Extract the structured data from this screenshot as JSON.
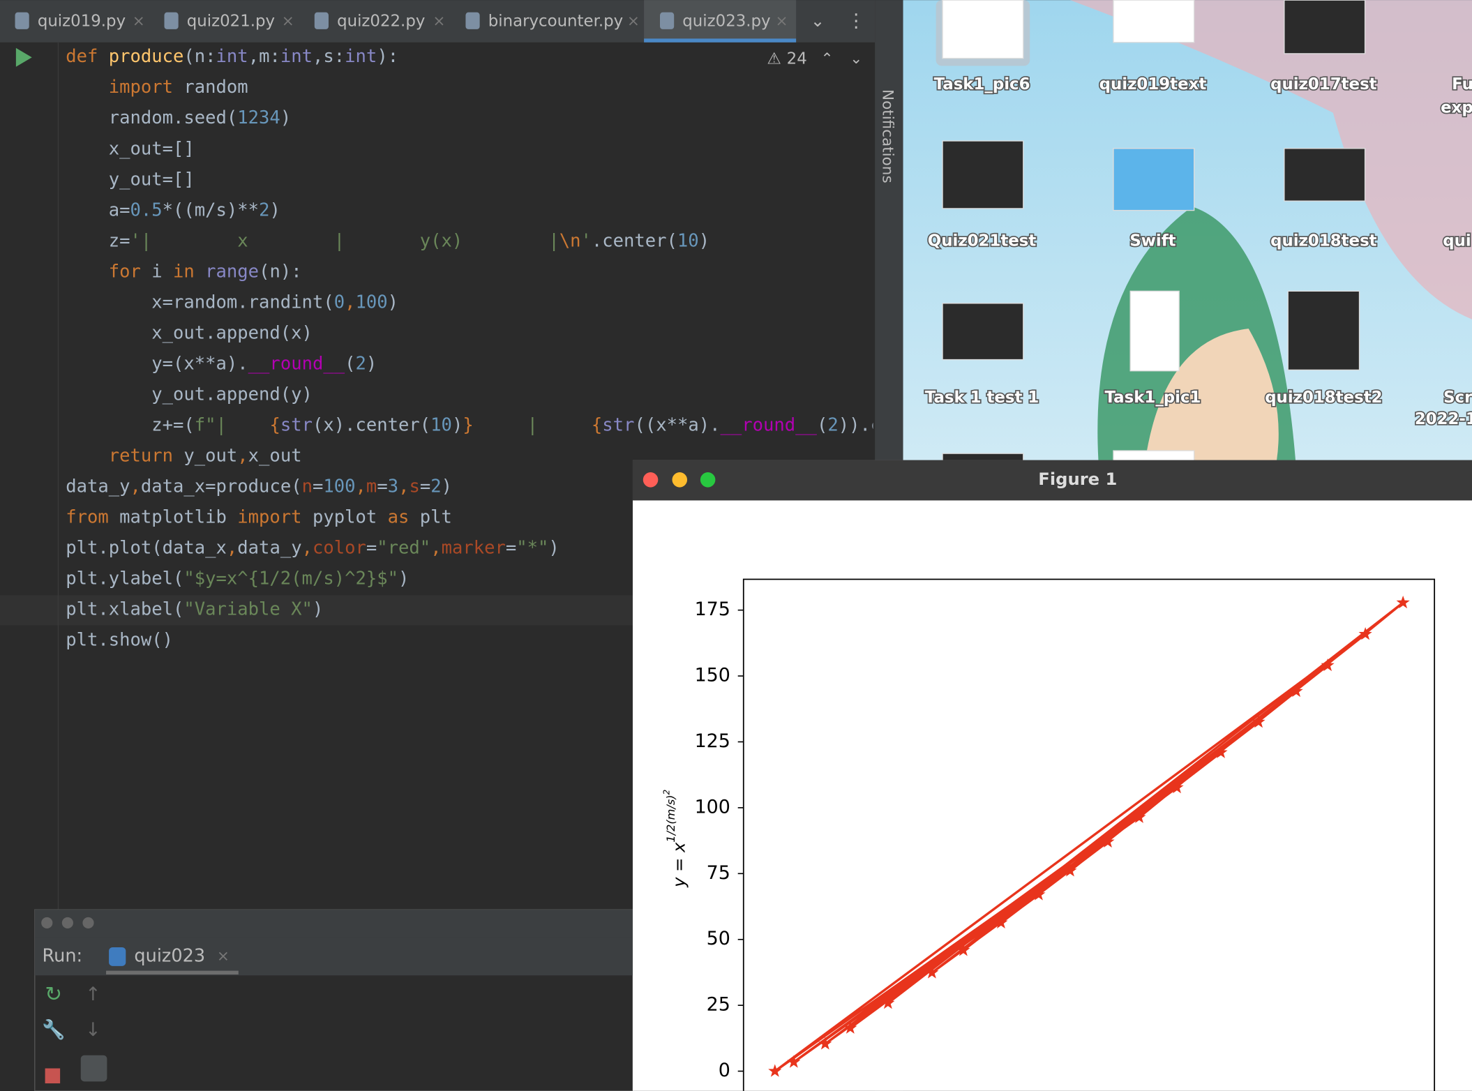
{
  "editor": {
    "tabs": [
      "quiz019.py",
      "quiz021.py",
      "quiz022.py",
      "binarycounter.py",
      "quiz023.py"
    ],
    "warnings": "24",
    "notifications": "Notifications",
    "lines": [
      [
        [
          "def ",
          "#cc7832"
        ],
        [
          "produce",
          "#ffc66d"
        ],
        [
          "(n:",
          "#a9b7c6"
        ],
        [
          "int",
          "#8888c6"
        ],
        [
          ",m:",
          "#a9b7c6"
        ],
        [
          "int",
          "#8888c6"
        ],
        [
          ",s:",
          "#a9b7c6"
        ],
        [
          "int",
          "#8888c6"
        ],
        [
          "):",
          "#a9b7c6"
        ]
      ],
      [
        [
          "    import ",
          "#cc7832"
        ],
        [
          "random",
          "#a9b7c6"
        ]
      ],
      [
        [
          "    random.seed(",
          "#a9b7c6"
        ],
        [
          "1234",
          "#6897bb"
        ],
        [
          ")",
          "#a9b7c6"
        ]
      ],
      [
        [
          "    x_out=[]",
          "#a9b7c6"
        ]
      ],
      [
        [
          "    y_out=[]",
          "#a9b7c6"
        ]
      ],
      [
        [
          "    a=",
          "#a9b7c6"
        ],
        [
          "0.5",
          "#6897bb"
        ],
        [
          "*((m/s)**",
          "#a9b7c6"
        ],
        [
          "2",
          "#6897bb"
        ],
        [
          ")",
          "#a9b7c6"
        ]
      ],
      [
        [
          "    z=",
          "#a9b7c6"
        ],
        [
          "'|        x        |       y(x)        |",
          "#6a8759"
        ],
        [
          "\\n",
          "#cc7832"
        ],
        [
          "'",
          "#6a8759"
        ],
        [
          ".center(",
          "#a9b7c6"
        ],
        [
          "10",
          "#6897bb"
        ],
        [
          ")",
          "#a9b7c6"
        ]
      ],
      [
        [
          "    for ",
          "#cc7832"
        ],
        [
          "i ",
          "#a9b7c6"
        ],
        [
          "in ",
          "#cc7832"
        ],
        [
          "range",
          "#8888c6"
        ],
        [
          "(n):",
          "#a9b7c6"
        ]
      ],
      [
        [
          "        x=random.randint(",
          "#a9b7c6"
        ],
        [
          "0",
          "#6897bb"
        ],
        [
          ",",
          "#cc7832"
        ],
        [
          "100",
          "#6897bb"
        ],
        [
          ")",
          "#a9b7c6"
        ]
      ],
      [
        [
          "        x_out.append(x)",
          "#a9b7c6"
        ]
      ],
      [
        [
          "        y=(x**a).",
          "#a9b7c6"
        ],
        [
          "__round__",
          "#b200b2"
        ],
        [
          "(",
          "#a9b7c6"
        ],
        [
          "2",
          "#6897bb"
        ],
        [
          ")",
          "#a9b7c6"
        ]
      ],
      [
        [
          "        y_out.append(y)",
          "#a9b7c6"
        ]
      ],
      [
        [
          "        z+=(",
          "#a9b7c6"
        ],
        [
          "f\"|    ",
          "#6a8759"
        ],
        [
          "{",
          "#cc7832"
        ],
        [
          "str",
          "#8888c6"
        ],
        [
          "(x).center(",
          "#a9b7c6"
        ],
        [
          "10",
          "#6897bb"
        ],
        [
          ")",
          "#a9b7c6"
        ],
        [
          "}",
          "#cc7832"
        ],
        [
          "     |     ",
          "#6a8759"
        ],
        [
          "{",
          "#cc7832"
        ],
        [
          "str",
          "#8888c6"
        ],
        [
          "((x**a).",
          "#a9b7c6"
        ],
        [
          "__round__",
          "#b200b2"
        ],
        [
          "(",
          "#a9b7c6"
        ],
        [
          "2",
          "#6897bb"
        ],
        [
          "))",
          "#a9b7c6"
        ],
        [
          ".c",
          "#a9b7c6"
        ]
      ],
      [
        [
          "    return ",
          "#cc7832"
        ],
        [
          "y_out",
          "#a9b7c6"
        ],
        [
          ",",
          "#cc7832"
        ],
        [
          "x_out",
          "#a9b7c6"
        ]
      ],
      [
        [
          "data_y",
          "#a9b7c6"
        ],
        [
          ",",
          "#cc7832"
        ],
        [
          "data_x=produce(",
          "#a9b7c6"
        ],
        [
          "n",
          "#aa4926"
        ],
        [
          "=",
          "#a9b7c6"
        ],
        [
          "100",
          "#6897bb"
        ],
        [
          ",",
          "#cc7832"
        ],
        [
          "m",
          "#aa4926"
        ],
        [
          "=",
          "#a9b7c6"
        ],
        [
          "3",
          "#6897bb"
        ],
        [
          ",",
          "#cc7832"
        ],
        [
          "s",
          "#aa4926"
        ],
        [
          "=",
          "#a9b7c6"
        ],
        [
          "2",
          "#6897bb"
        ],
        [
          ")",
          "#a9b7c6"
        ]
      ],
      [
        [
          "from ",
          "#cc7832"
        ],
        [
          "matplotlib ",
          "#a9b7c6"
        ],
        [
          "import ",
          "#cc7832"
        ],
        [
          "pyplot ",
          "#a9b7c6"
        ],
        [
          "as ",
          "#cc7832"
        ],
        [
          "plt",
          "#a9b7c6"
        ]
      ],
      [
        [
          "plt.plot(data_x",
          "#a9b7c6"
        ],
        [
          ",",
          "#cc7832"
        ],
        [
          "data_y",
          "#a9b7c6"
        ],
        [
          ",",
          "#cc7832"
        ],
        [
          "color",
          "#aa4926"
        ],
        [
          "=",
          "#a9b7c6"
        ],
        [
          "\"red\"",
          "#6a8759"
        ],
        [
          ",",
          "#cc7832"
        ],
        [
          "marker",
          "#aa4926"
        ],
        [
          "=",
          "#a9b7c6"
        ],
        [
          "\"*\"",
          "#6a8759"
        ],
        [
          ")",
          "#a9b7c6"
        ]
      ],
      [
        [
          "plt.ylabel(",
          "#a9b7c6"
        ],
        [
          "\"$y=x^{1/2(m/s)^2}$\"",
          "#6a8759"
        ],
        [
          ")",
          "#a9b7c6"
        ]
      ],
      [
        [
          "plt.xlabel(",
          "#a9b7c6"
        ],
        [
          "\"Variable X\"",
          "#6a8759"
        ],
        [
          ")",
          "#a9b7c6"
        ]
      ],
      [
        [
          "plt.show()",
          "#a9b7c6"
        ]
      ]
    ]
  },
  "run": {
    "label": "Run:",
    "config": "quiz023"
  },
  "desktop": {
    "icons": [
      "Task1_pic6",
      "quiz019text",
      "quiz017test",
      "Fu",
      "exp",
      "Quiz021test",
      "Swift",
      "quiz018test",
      "qui",
      "Task 1 test 1",
      "Task1_pic1",
      "quiz018test2",
      "Scr",
      "2022-1"
    ]
  },
  "figure": {
    "title": "Figure 1"
  },
  "chart_data": {
    "type": "line",
    "color": "#e8341c",
    "marker": "*",
    "ylabel": {
      "base": "y = x",
      "exponent": "1/2(m/s)",
      "exponent_power": "2"
    },
    "x": [
      47,
      83,
      12,
      64,
      0,
      94,
      30,
      71,
      3,
      58,
      100,
      18,
      88,
      36,
      53,
      8,
      77,
      25,
      42
    ],
    "values": [
      76.05,
      144.2,
      16.37,
      107.64,
      0,
      165.87,
      45.89,
      120.96,
      3.44,
      96.36,
      177.83,
      25.83,
      154.01,
      56.34,
      87.06,
      10.37,
      132.53,
      37.38,
      67.01
    ],
    "xlim": [
      -5,
      105
    ],
    "ylim": [
      -8.9,
      186.7
    ],
    "yticks": [
      0,
      25,
      50,
      75,
      100,
      125,
      150,
      175
    ]
  }
}
